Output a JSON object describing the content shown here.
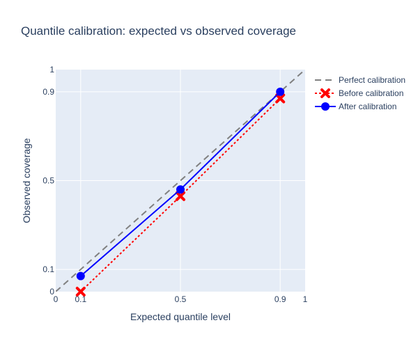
{
  "chart_data": {
    "type": "line",
    "title": "Quantile calibration: expected vs observed coverage",
    "xlabel": "Expected quantile level",
    "ylabel": "Observed coverage",
    "xlim": [
      0,
      1
    ],
    "ylim": [
      0,
      1
    ],
    "xticks": [
      0,
      0.1,
      0.5,
      0.9,
      1
    ],
    "yticks": [
      0,
      0.1,
      0.5,
      0.9,
      1
    ],
    "xtick_labels": [
      "0",
      "0.1",
      "0.5",
      "0.9",
      "1"
    ],
    "ytick_labels": [
      "0",
      "0.1",
      "0.5",
      "0.9",
      "1"
    ],
    "grid": true,
    "legend_position": "top-right-outside",
    "series": [
      {
        "name": "Perfect calibration",
        "x": [
          0,
          1
        ],
        "y": [
          0,
          1
        ],
        "color": "#808080",
        "line_style": "dash",
        "marker": "none"
      },
      {
        "name": "Before calibration",
        "x": [
          0.1,
          0.5,
          0.9
        ],
        "y": [
          0.0,
          0.43,
          0.87
        ],
        "color": "#ff0000",
        "line_style": "dot",
        "marker": "x"
      },
      {
        "name": "After calibration",
        "x": [
          0.1,
          0.5,
          0.9
        ],
        "y": [
          0.07,
          0.46,
          0.9
        ],
        "color": "#0000ff",
        "line_style": "solid",
        "marker": "circle"
      }
    ]
  },
  "colors": {
    "plot_background": "#e5ecf6",
    "grid": "#ffffff",
    "text": "#2a3f5f"
  }
}
